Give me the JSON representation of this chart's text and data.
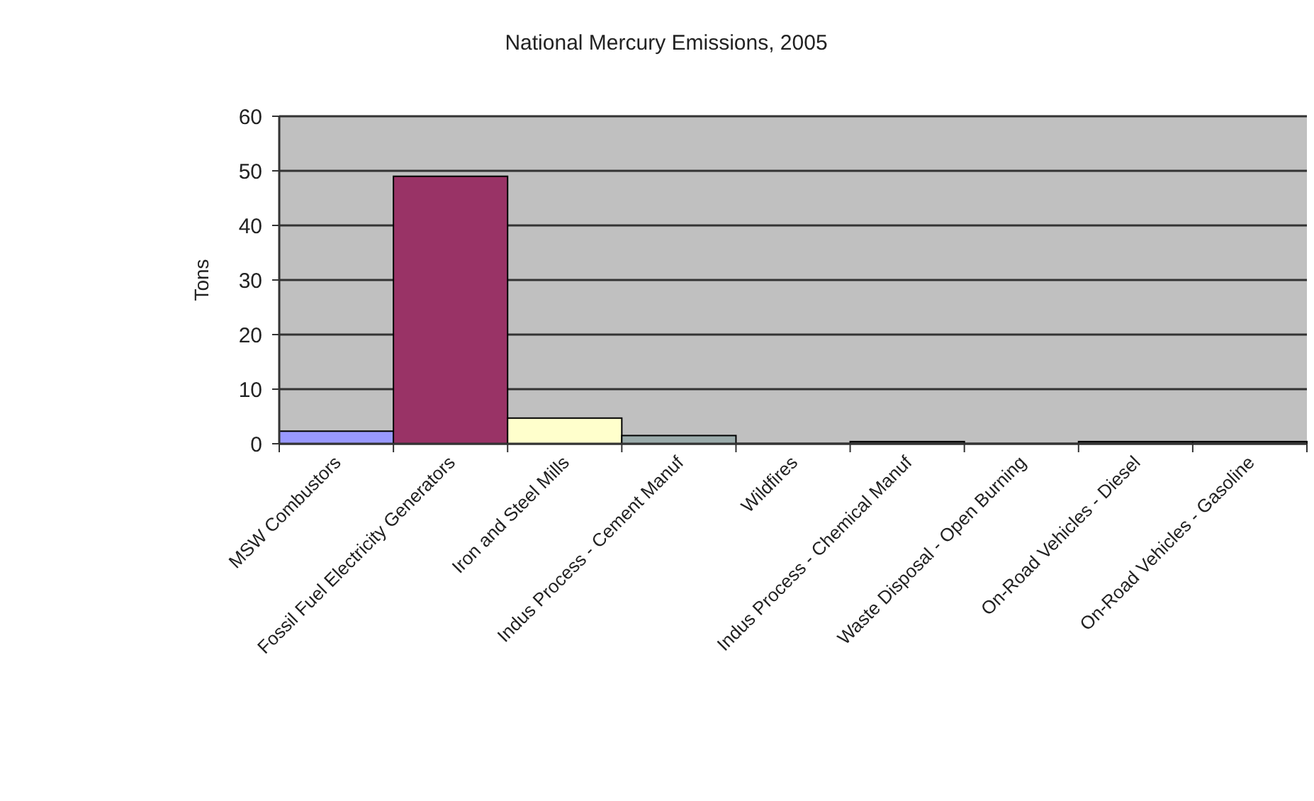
{
  "chart_data": {
    "type": "bar",
    "title": "National Mercury Emissions, 2005",
    "ylabel": "Tons",
    "categories": [
      "MSW Combustors",
      "Fossil Fuel Electricity Generators",
      "Iron and Steel Mills",
      "Indus Process - Cement Manuf",
      "Wildfires",
      "Indus Process - Chemical Manuf",
      "Waste Disposal - Open Burning",
      "On-Road Vehicles - Diesel",
      "On-Road Vehicles - Gasoline"
    ],
    "values": [
      2.3,
      49,
      4.7,
      1.5,
      null,
      0.4,
      null,
      0.4,
      0.4
    ],
    "colors": [
      "#9999ff",
      "#993366",
      "#ffffcc",
      "#9aabab",
      null,
      "#404040",
      null,
      "#404040",
      "#404040"
    ],
    "ylim": [
      0,
      60
    ],
    "yticks": [
      0,
      10,
      20,
      30,
      40,
      50,
      60
    ],
    "grid": "y"
  }
}
